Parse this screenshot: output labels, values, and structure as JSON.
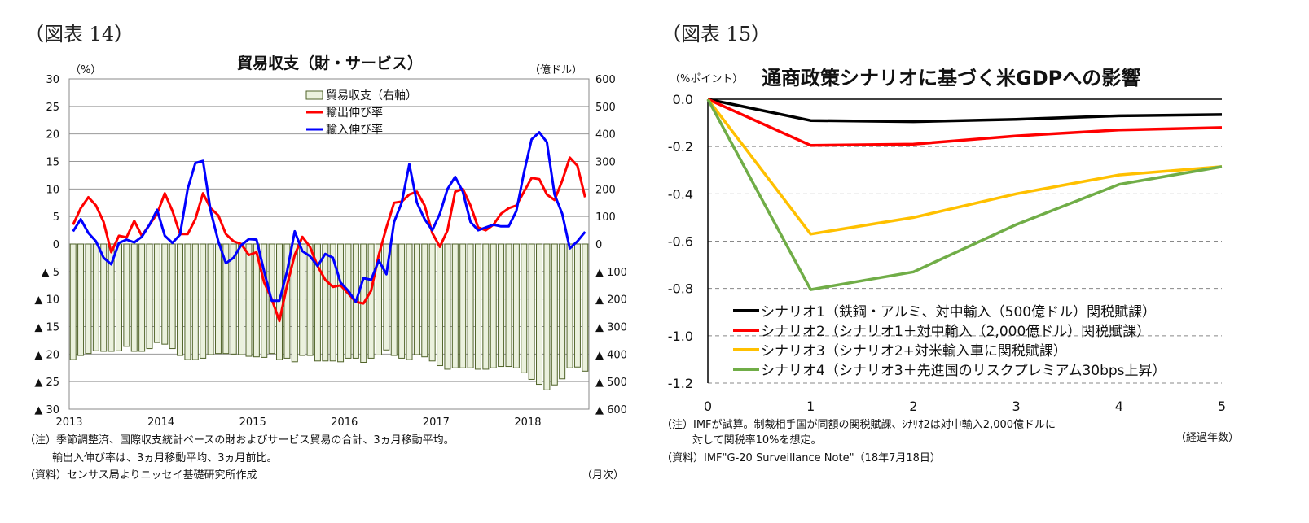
{
  "chart_data": [
    {
      "type": "bar+line",
      "figure_label": "（図表 14）",
      "title": "貿易収支（財・サービス）",
      "y_left_unit": "（%）",
      "y_right_unit": "（億ドル）",
      "x_unit": "（月次）",
      "ylim_left": [
        -30,
        30
      ],
      "ylim_right": [
        -600,
        600
      ],
      "y_left_ticks": [
        "30",
        "25",
        "20",
        "15",
        "10",
        "5",
        "0",
        "▲ 5",
        "▲ 10",
        "▲ 15",
        "▲ 20",
        "▲ 25",
        "▲ 30"
      ],
      "y_right_ticks": [
        "600",
        "500",
        "400",
        "300",
        "200",
        "100",
        "0",
        "▲ 100",
        "▲ 200",
        "▲ 300",
        "▲ 400",
        "▲ 500",
        "▲ 600"
      ],
      "x_ticks": [
        "2013",
        "2014",
        "2015",
        "2016",
        "2017",
        "2018"
      ],
      "x_range": "2013-01 to 2018-08 (monthly)",
      "grid": true,
      "legend_placement": "top-center",
      "colors": {
        "bar_fill": "#ebf1de",
        "bar_edge": "#4f6228",
        "export": "#ff0000",
        "import": "#0000ff"
      },
      "series": [
        {
          "name": "貿易収支（右軸）",
          "type": "bar",
          "axis": "right",
          "values": [
            -420,
            -405,
            -398,
            -388,
            -390,
            -390,
            -388,
            -372,
            -390,
            -390,
            -380,
            -358,
            -364,
            -380,
            -405,
            -420,
            -420,
            -415,
            -402,
            -398,
            -398,
            -400,
            -402,
            -408,
            -410,
            -412,
            -398,
            -420,
            -415,
            -428,
            -405,
            -405,
            -425,
            -425,
            -425,
            -428,
            -415,
            -415,
            -430,
            -415,
            -403,
            -385,
            -405,
            -415,
            -420,
            -402,
            -410,
            -425,
            -442,
            -455,
            -450,
            -450,
            -450,
            -455,
            -455,
            -450,
            -445,
            -445,
            -450,
            -468,
            -492,
            -510,
            -530,
            -512,
            -490,
            -450,
            -447,
            -462
          ]
        },
        {
          "name": "輸出伸び率",
          "type": "line",
          "axis": "left",
          "values": [
            3.5,
            6.5,
            8.5,
            7,
            4,
            -1.5,
            1.5,
            1.2,
            4.2,
            1.5,
            3.5,
            5.5,
            9.2,
            6,
            1.8,
            1.8,
            4.5,
            9.2,
            6.5,
            5.2,
            1.8,
            0.5,
            0,
            -2,
            -1.5,
            -7,
            -10,
            -14,
            -7.5,
            -2,
            1.3,
            -0.5,
            -4,
            -6.5,
            -7.8,
            -7.5,
            -9,
            -10.5,
            -10.8,
            -8.5,
            -2,
            3,
            7.5,
            7.7,
            9,
            9.5,
            7,
            2,
            -0.5,
            2.5,
            9.5,
            10,
            7,
            3,
            2.5,
            3.5,
            5.5,
            6.5,
            7,
            9.5,
            12,
            11.8,
            9,
            8,
            11.5,
            15.7,
            14.2,
            8.5
          ]
        },
        {
          "name": "輸入伸び率",
          "type": "line",
          "axis": "left",
          "values": [
            2.3,
            4.5,
            2,
            0.5,
            -2.5,
            -3.7,
            0.2,
            0.8,
            0.3,
            1.3,
            3.5,
            6.2,
            1.5,
            0.2,
            1.7,
            10,
            14.7,
            15.1,
            6,
            0.5,
            -3.5,
            -2.5,
            -0.2,
            0.9,
            0.8,
            -5,
            -10.3,
            -10.3,
            -5,
            2.3,
            -1.3,
            -2.2,
            -4,
            -1.8,
            -2.5,
            -7,
            -8.5,
            -10.5,
            -6.2,
            -6.5,
            -3,
            -5.5,
            4,
            7.5,
            14.5,
            7.5,
            4.5,
            2.5,
            5.5,
            10,
            12.2,
            9.5,
            4,
            2.5,
            3,
            3.5,
            3.2,
            3.2,
            6,
            13,
            19,
            20.3,
            18.5,
            9,
            5.5,
            -0.8,
            0.5,
            2.2
          ]
        }
      ],
      "notes": [
        "（注）季節調整済、国際収支統計ベースの財およびサービス貿易の合計、3ヵ月移動平均。",
        "輸出入伸び率は、3ヵ月移動平均、3ヵ月前比。",
        "（資料）センサス局よりニッセイ基礎研究所作成"
      ]
    },
    {
      "type": "line",
      "figure_label": "（図表 15）",
      "title": "通商政策シナリオに基づく米GDPへの影響",
      "ylabel": "（%ポイント）",
      "xlabel": "（経過年数）",
      "x": [
        0,
        1,
        2,
        3,
        4,
        5
      ],
      "ylim": [
        -1.2,
        0
      ],
      "xlim": [
        0,
        5
      ],
      "y_ticks": [
        "0.0",
        "-0.2",
        "-0.4",
        "-0.6",
        "-0.8",
        "-1.0",
        "-1.2"
      ],
      "x_ticks": [
        "0",
        "1",
        "2",
        "3",
        "4",
        "5"
      ],
      "grid": "dashed horizontal",
      "legend_placement": "bottom-left",
      "series": [
        {
          "name": "シナリオ1（鉄鋼・アルミ、対中輸入（500億ドル）関税賦課）",
          "color": "#000000",
          "values": [
            0,
            -0.09,
            -0.095,
            -0.085,
            -0.07,
            -0.065
          ]
        },
        {
          "name": "シナリオ2（シナリオ1＋対中輸入（2,000億ドル）関税賦課）",
          "color": "#ff0000",
          "values": [
            0,
            -0.195,
            -0.19,
            -0.155,
            -0.13,
            -0.12
          ]
        },
        {
          "name": "シナリオ3（シナリオ2+対米輸入車に関税賦課）",
          "color": "#ffc000",
          "values": [
            0,
            -0.57,
            -0.5,
            -0.4,
            -0.32,
            -0.285
          ]
        },
        {
          "name": "シナリオ4（シナリオ3＋先進国のリスクプレミアム30bps上昇）",
          "color": "#70ad47",
          "values": [
            0,
            -0.805,
            -0.73,
            -0.53,
            -0.36,
            -0.285
          ]
        }
      ],
      "notes": [
        "（注）IMFが試算。制裁相手国が同額の関税賦課、ｼﾅﾘｵ2は対中輸入2,000億ドルに",
        "対して関税率10%を想定。",
        "（資料）IMF\"G-20 Surveillance Note\"（18年7月18日）"
      ]
    }
  ]
}
